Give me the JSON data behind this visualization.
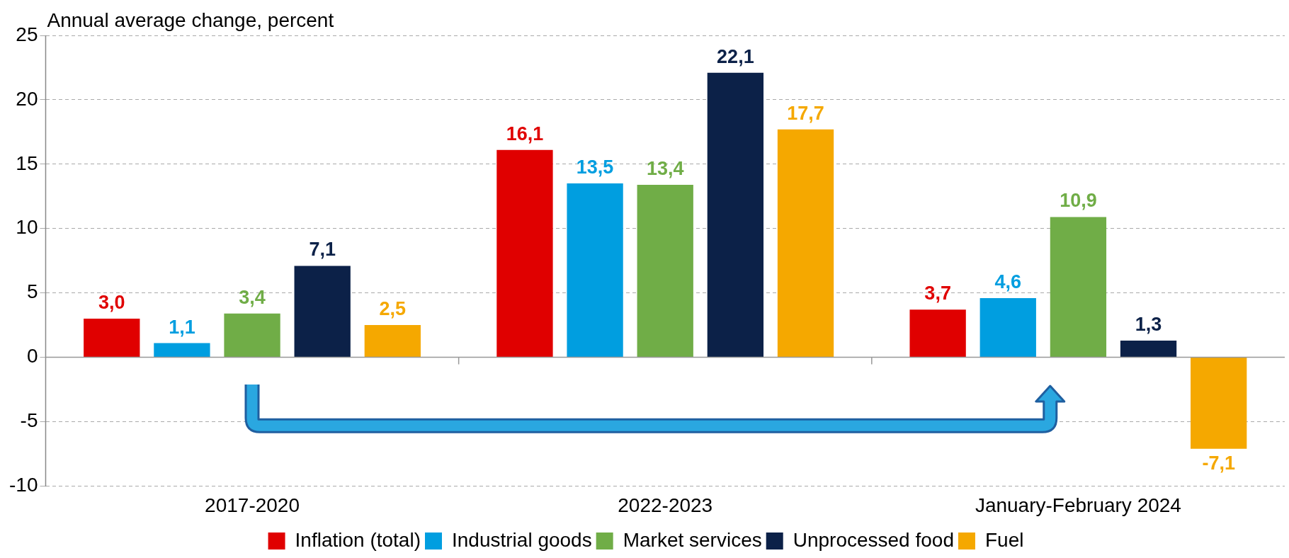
{
  "chart_data": {
    "type": "bar",
    "ylabel": "Annual average change, percent",
    "categories": [
      "2017-2020",
      "2022-2023",
      "January-February 2024"
    ],
    "series": [
      {
        "name": "Inflation (total)",
        "color": "#e00000",
        "values": [
          3.0,
          16.1,
          3.7
        ],
        "value_labels": [
          "3,0",
          "16,1",
          "3,7"
        ]
      },
      {
        "name": "Industrial goods",
        "color": "#009ee0",
        "values": [
          1.1,
          13.5,
          4.6
        ],
        "value_labels": [
          "1,1",
          "13,5",
          "4,6"
        ]
      },
      {
        "name": "Market services",
        "color": "#70ad47",
        "values": [
          3.4,
          13.4,
          10.9
        ],
        "value_labels": [
          "3,4",
          "13,4",
          "10,9"
        ]
      },
      {
        "name": "Unprocessed food",
        "color": "#0c2148",
        "values": [
          7.1,
          22.1,
          1.3
        ],
        "value_labels": [
          "7,1",
          "22,1",
          "1,3"
        ]
      },
      {
        "name": "Fuel",
        "color": "#f5a800",
        "values": [
          2.5,
          17.7,
          -7.1
        ],
        "value_labels": [
          "2,5",
          "17,7",
          "-7,1"
        ]
      }
    ],
    "ylim": [
      -10,
      25
    ],
    "yticks": [
      -10,
      -5,
      0,
      5,
      10,
      15,
      20,
      25
    ],
    "grid": "y",
    "legend": "bottom"
  }
}
